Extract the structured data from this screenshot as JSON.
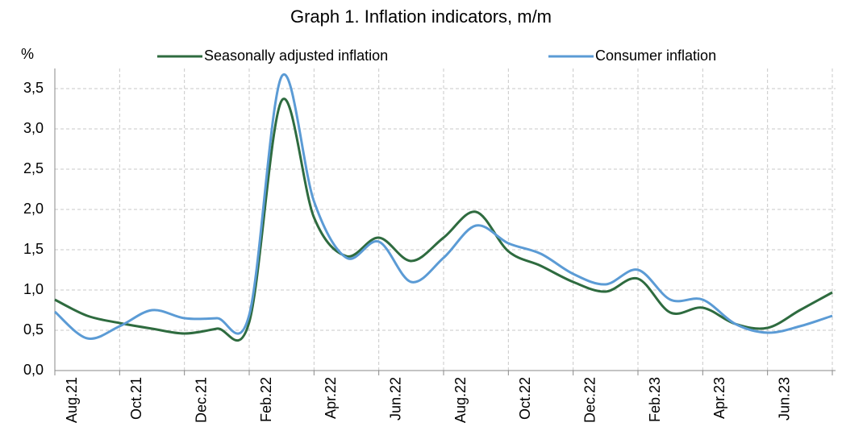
{
  "chart_data": {
    "type": "line",
    "title": "Graph 1. Inflation indicators, m/m",
    "y_label": "%",
    "categories": [
      "Aug.21",
      null,
      "Oct.21",
      null,
      "Dec.21",
      null,
      "Feb.22",
      null,
      "Apr.22",
      null,
      "Jun.22",
      null,
      "Aug.22",
      null,
      "Oct.22",
      null,
      "Dec.22",
      null,
      "Feb.23",
      null,
      "Apr.23",
      null,
      "Jun.23",
      null,
      "Aug.23"
    ],
    "series": [
      {
        "name": "Seasonally adjusted inflation",
        "color": "#2e6b3f",
        "values": [
          0.88,
          0.68,
          0.59,
          0.52,
          0.46,
          0.52,
          0.6,
          3.35,
          1.9,
          1.42,
          1.65,
          1.36,
          1.65,
          1.97,
          1.48,
          1.3,
          1.1,
          0.98,
          1.14,
          0.72,
          0.78,
          0.58,
          0.53,
          0.75,
          0.97
        ]
      },
      {
        "name": "Consumer inflation",
        "color": "#5b9bd5",
        "values": [
          0.73,
          0.4,
          0.55,
          0.75,
          0.65,
          0.65,
          0.69,
          3.65,
          2.1,
          1.4,
          1.6,
          1.1,
          1.4,
          1.8,
          1.58,
          1.45,
          1.2,
          1.07,
          1.25,
          0.88,
          0.88,
          0.58,
          0.47,
          0.55,
          0.68
        ]
      }
    ],
    "ylim": [
      0,
      3.75
    ],
    "yticks": [
      {
        "value": 0,
        "label": "0,0"
      },
      {
        "value": 0.5,
        "label": "0,5"
      },
      {
        "value": 1,
        "label": "1,0"
      },
      {
        "value": 1.5,
        "label": "1,5"
      },
      {
        "value": 2,
        "label": "2,0"
      },
      {
        "value": 2.5,
        "label": "2,5"
      },
      {
        "value": 3,
        "label": "3,0"
      },
      {
        "value": 3.5,
        "label": "3,5"
      }
    ],
    "grid": true,
    "legend": "top"
  }
}
